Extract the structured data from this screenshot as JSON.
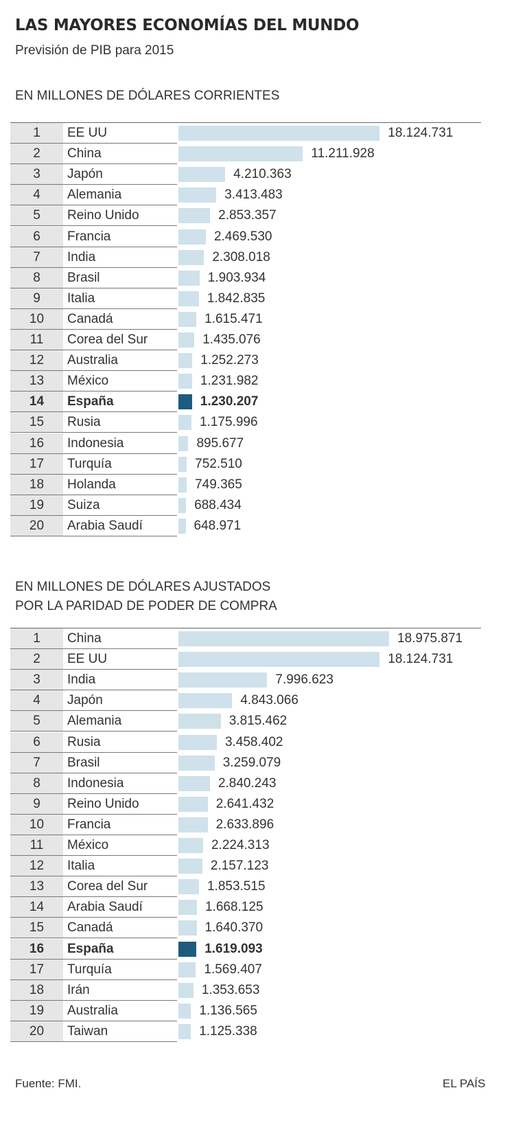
{
  "title": "LAS MAYORES ECONOMÍAS DEL MUNDO",
  "subtitle": "Previsión de PIB para 2015",
  "source": "Fuente: FMI.",
  "brand": "EL PAÍS",
  "colors": {
    "bar": "#cfe1ea",
    "highlight": "#1e5b7d"
  },
  "chart_data": [
    {
      "type": "bar",
      "title": "EN MILLONES DE DÓLARES CORRIENTES",
      "title_lines": [
        "EN MILLONES DE DÓLARES CORRIENTES"
      ],
      "highlight": "España",
      "rows": [
        {
          "rank": "1",
          "name": "EE UU",
          "value": 18124731,
          "label": "18.124.731"
        },
        {
          "rank": "2",
          "name": "China",
          "value": 11211928,
          "label": "11.211.928"
        },
        {
          "rank": "3",
          "name": "Japón",
          "value": 4210363,
          "label": "4.210.363"
        },
        {
          "rank": "4",
          "name": "Alemania",
          "value": 3413483,
          "label": "3.413.483"
        },
        {
          "rank": "5",
          "name": "Reino Unido",
          "value": 2853357,
          "label": "2.853.357"
        },
        {
          "rank": "6",
          "name": "Francia",
          "value": 2469530,
          "label": "2.469.530"
        },
        {
          "rank": "7",
          "name": "India",
          "value": 2308018,
          "label": "2.308.018"
        },
        {
          "rank": "8",
          "name": "Brasil",
          "value": 1903934,
          "label": "1.903.934"
        },
        {
          "rank": "9",
          "name": "Italia",
          "value": 1842835,
          "label": "1.842.835"
        },
        {
          "rank": "10",
          "name": "Canadá",
          "value": 1615471,
          "label": "1.615.471"
        },
        {
          "rank": "11",
          "name": "Corea del Sur",
          "value": 1435076,
          "label": "1.435.076"
        },
        {
          "rank": "12",
          "name": "Australia",
          "value": 1252273,
          "label": "1.252.273"
        },
        {
          "rank": "13",
          "name": "México",
          "value": 1231982,
          "label": "1.231.982"
        },
        {
          "rank": "14",
          "name": "España",
          "value": 1230207,
          "label": "1.230.207"
        },
        {
          "rank": "15",
          "name": "Rusia",
          "value": 1175996,
          "label": "1.175.996"
        },
        {
          "rank": "16",
          "name": "Indonesia",
          "value": 895677,
          "label": "895.677"
        },
        {
          "rank": "17",
          "name": "Turquía",
          "value": 752510,
          "label": "752.510"
        },
        {
          "rank": "18",
          "name": "Holanda",
          "value": 749365,
          "label": "749.365"
        },
        {
          "rank": "19",
          "name": "Suiza",
          "value": 688434,
          "label": "688.434"
        },
        {
          "rank": "20",
          "name": "Arabia Saudí",
          "value": 648971,
          "label": "648.971"
        }
      ]
    },
    {
      "type": "bar",
      "title": "EN MILLONES DE DÓLARES AJUSTADOS POR LA PARIDAD DE PODER DE COMPRA",
      "title_lines": [
        "EN MILLONES DE DÓLARES AJUSTADOS",
        "POR LA PARIDAD DE PODER DE COMPRA"
      ],
      "highlight": "España",
      "rows": [
        {
          "rank": "1",
          "name": "China",
          "value": 18975871,
          "label": "18.975.871"
        },
        {
          "rank": "2",
          "name": "EE UU",
          "value": 18124731,
          "label": "18.124.731"
        },
        {
          "rank": "3",
          "name": "India",
          "value": 7996623,
          "label": "7.996.623"
        },
        {
          "rank": "4",
          "name": "Japón",
          "value": 4843066,
          "label": "4.843.066"
        },
        {
          "rank": "5",
          "name": "Alemania",
          "value": 3815462,
          "label": "3.815.462"
        },
        {
          "rank": "6",
          "name": "Rusia",
          "value": 3458402,
          "label": "3.458.402"
        },
        {
          "rank": "7",
          "name": "Brasil",
          "value": 3259079,
          "label": "3.259.079"
        },
        {
          "rank": "8",
          "name": "Indonesia",
          "value": 2840243,
          "label": "2.840.243"
        },
        {
          "rank": "9",
          "name": "Reino Unido",
          "value": 2641432,
          "label": "2.641.432"
        },
        {
          "rank": "10",
          "name": "Francia",
          "value": 2633896,
          "label": "2.633.896"
        },
        {
          "rank": "11",
          "name": "México",
          "value": 2224313,
          "label": "2.224.313"
        },
        {
          "rank": "12",
          "name": "Italia",
          "value": 2157123,
          "label": "2.157.123"
        },
        {
          "rank": "13",
          "name": "Corea del Sur",
          "value": 1853515,
          "label": "1.853.515"
        },
        {
          "rank": "14",
          "name": "Arabia Saudí",
          "value": 1668125,
          "label": "1.668.125"
        },
        {
          "rank": "15",
          "name": "Canadá",
          "value": 1640370,
          "label": "1.640.370"
        },
        {
          "rank": "16",
          "name": "España",
          "value": 1619093,
          "label": "1.619.093"
        },
        {
          "rank": "17",
          "name": "Turquía",
          "value": 1569407,
          "label": "1.569.407"
        },
        {
          "rank": "18",
          "name": "Irán",
          "value": 1353653,
          "label": "1.353.653"
        },
        {
          "rank": "19",
          "name": "Australia",
          "value": 1136565,
          "label": "1.136.565"
        },
        {
          "rank": "20",
          "name": "Taiwan",
          "value": 1125338,
          "label": "1.125.338"
        }
      ]
    }
  ]
}
